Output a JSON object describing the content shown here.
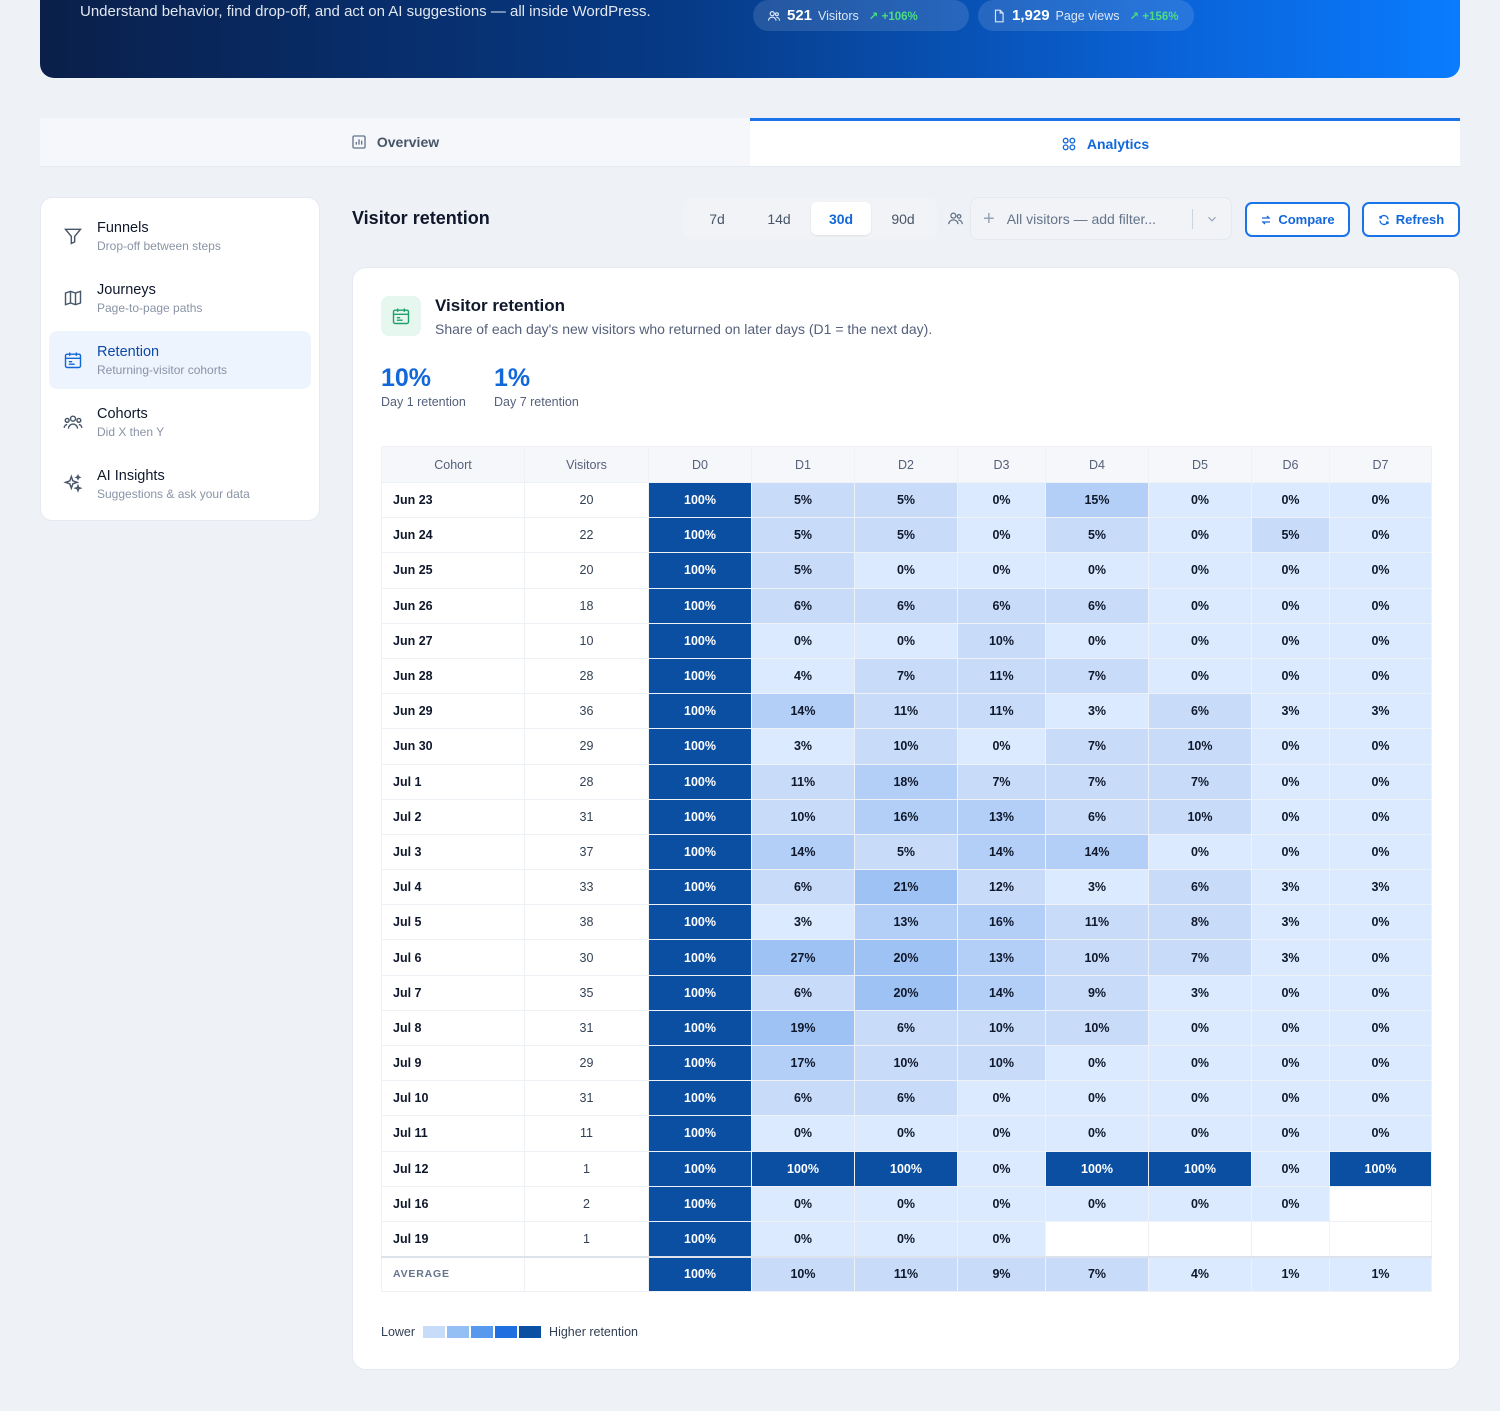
{
  "hero": {
    "subtitle": "Understand behavior, find drop-off, and act on AI suggestions — all inside WordPress.",
    "stats": [
      {
        "value": "521",
        "label": "Visitors",
        "delta": "+106%"
      },
      {
        "value": "1,929",
        "label": "Page views",
        "delta": "+156%"
      }
    ]
  },
  "tabs": [
    {
      "label": "Overview",
      "active": false
    },
    {
      "label": "Analytics",
      "active": true
    }
  ],
  "sidebar": {
    "items": [
      {
        "title": "Funnels",
        "desc": "Drop-off between steps",
        "icon": "funnel-icon"
      },
      {
        "title": "Journeys",
        "desc": "Page-to-page paths",
        "icon": "map-icon"
      },
      {
        "title": "Retention",
        "desc": "Returning-visitor cohorts",
        "icon": "calendar-icon",
        "active": true
      },
      {
        "title": "Cohorts",
        "desc": "Did X then Y",
        "icon": "users-icon"
      },
      {
        "title": "AI Insights",
        "desc": "Suggestions & ask your data",
        "icon": "sparkles-icon"
      }
    ]
  },
  "header": {
    "title": "Visitor retention",
    "ranges": [
      "7d",
      "14d",
      "30d",
      "90d"
    ],
    "active_range": "30d",
    "filter_placeholder": "All visitors — add filter...",
    "compare_label": "Compare",
    "refresh_label": "Refresh"
  },
  "card": {
    "title": "Visitor retention",
    "desc": "Share of each day's new visitors who returned on later days (D1 = the next day).",
    "kpis": [
      {
        "value": "10%",
        "label": "Day 1 retention"
      },
      {
        "value": "1%",
        "label": "Day 7 retention"
      }
    ],
    "columns": [
      "Cohort",
      "Visitors",
      "D0",
      "D1",
      "D2",
      "D3",
      "D4",
      "D5",
      "D6",
      "D7"
    ],
    "rows": [
      {
        "cohort": "Jun 23",
        "visitors": "20",
        "values": [
          100,
          5,
          5,
          0,
          15,
          0,
          0,
          0
        ]
      },
      {
        "cohort": "Jun 24",
        "visitors": "22",
        "values": [
          100,
          5,
          5,
          0,
          5,
          0,
          5,
          0
        ]
      },
      {
        "cohort": "Jun 25",
        "visitors": "20",
        "values": [
          100,
          5,
          0,
          0,
          0,
          0,
          0,
          0
        ]
      },
      {
        "cohort": "Jun 26",
        "visitors": "18",
        "values": [
          100,
          6,
          6,
          6,
          6,
          0,
          0,
          0
        ]
      },
      {
        "cohort": "Jun 27",
        "visitors": "10",
        "values": [
          100,
          0,
          0,
          10,
          0,
          0,
          0,
          0
        ]
      },
      {
        "cohort": "Jun 28",
        "visitors": "28",
        "values": [
          100,
          4,
          7,
          11,
          7,
          0,
          0,
          0
        ]
      },
      {
        "cohort": "Jun 29",
        "visitors": "36",
        "values": [
          100,
          14,
          11,
          11,
          3,
          6,
          3,
          3
        ]
      },
      {
        "cohort": "Jun 30",
        "visitors": "29",
        "values": [
          100,
          3,
          10,
          0,
          7,
          10,
          0,
          0
        ]
      },
      {
        "cohort": "Jul 1",
        "visitors": "28",
        "values": [
          100,
          11,
          18,
          7,
          7,
          7,
          0,
          0
        ]
      },
      {
        "cohort": "Jul 2",
        "visitors": "31",
        "values": [
          100,
          10,
          16,
          13,
          6,
          10,
          0,
          0
        ]
      },
      {
        "cohort": "Jul 3",
        "visitors": "37",
        "values": [
          100,
          14,
          5,
          14,
          14,
          0,
          0,
          0
        ]
      },
      {
        "cohort": "Jul 4",
        "visitors": "33",
        "values": [
          100,
          6,
          21,
          12,
          3,
          6,
          3,
          3
        ]
      },
      {
        "cohort": "Jul 5",
        "visitors": "38",
        "values": [
          100,
          3,
          13,
          16,
          11,
          8,
          3,
          0
        ]
      },
      {
        "cohort": "Jul 6",
        "visitors": "30",
        "values": [
          100,
          27,
          20,
          13,
          10,
          7,
          3,
          0
        ]
      },
      {
        "cohort": "Jul 7",
        "visitors": "35",
        "values": [
          100,
          6,
          20,
          14,
          9,
          3,
          0,
          0
        ]
      },
      {
        "cohort": "Jul 8",
        "visitors": "31",
        "values": [
          100,
          19,
          6,
          10,
          10,
          0,
          0,
          0
        ]
      },
      {
        "cohort": "Jul 9",
        "visitors": "29",
        "values": [
          100,
          17,
          10,
          10,
          0,
          0,
          0,
          0
        ]
      },
      {
        "cohort": "Jul 10",
        "visitors": "31",
        "values": [
          100,
          6,
          6,
          0,
          0,
          0,
          0,
          0
        ]
      },
      {
        "cohort": "Jul 11",
        "visitors": "11",
        "values": [
          100,
          0,
          0,
          0,
          0,
          0,
          0,
          0
        ]
      },
      {
        "cohort": "Jul 12",
        "visitors": "1",
        "values": [
          100,
          100,
          100,
          0,
          100,
          100,
          0,
          100
        ]
      },
      {
        "cohort": "Jul 16",
        "visitors": "2",
        "values": [
          100,
          0,
          0,
          0,
          0,
          0,
          0,
          null
        ]
      },
      {
        "cohort": "Jul 19",
        "visitors": "1",
        "values": [
          100,
          0,
          0,
          0,
          null,
          null,
          null,
          null
        ]
      }
    ],
    "average": {
      "label": "AVERAGE",
      "values": [
        100,
        10,
        11,
        9,
        7,
        4,
        1,
        1
      ]
    },
    "legend": {
      "low": "Lower",
      "high": "Higher retention"
    }
  },
  "colors": {
    "accent": "#1a73e8",
    "heat": [
      "#dbeafe",
      "#c8dcfa",
      "#b3cff7",
      "#9ec2f3",
      "#0b4fa3"
    ]
  }
}
